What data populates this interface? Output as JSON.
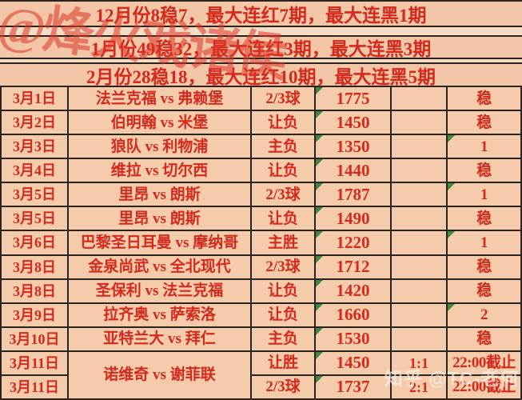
{
  "watermarks": {
    "top_left": "@烽火戏诸侯",
    "bottom_right": "知乎 @TC-老何"
  },
  "summary_rows": [
    "12月份8稳7，最大连红7期，最大连黑1期",
    "1月份49稳32，最大连红3期，最大连黑3期",
    "2月份28稳18，最大连红10期，最大连黑5期"
  ],
  "table": {
    "columns": [
      "date",
      "match",
      "bet",
      "odds",
      "score",
      "result"
    ],
    "rows": [
      {
        "date": "3月1日",
        "match": "法兰克福 vs 弗赖堡",
        "match_span": 1,
        "bet": "2/3球",
        "odds": "1775",
        "odds_flag": true,
        "score": "",
        "result": "稳",
        "result_flag": false
      },
      {
        "date": "3月2日",
        "match": "伯明翰 vs 米堡",
        "match_span": 1,
        "bet": "让负",
        "odds": "1450",
        "odds_flag": true,
        "score": "",
        "result": "稳",
        "result_flag": false
      },
      {
        "date": "3月3日",
        "match": "狼队 vs 利物浦",
        "match_span": 1,
        "bet": "主负",
        "odds": "1350",
        "odds_flag": true,
        "score": "",
        "result": "1",
        "result_flag": true
      },
      {
        "date": "3月4日",
        "match": "维拉 vs 切尔西",
        "match_span": 1,
        "bet": "让负",
        "odds": "1440",
        "odds_flag": true,
        "score": "",
        "result": "稳",
        "result_flag": false
      },
      {
        "date": "3月5日",
        "match": "里昂 vs 朗斯",
        "match_span": 1,
        "bet": "2/3球",
        "odds": "1787",
        "odds_flag": true,
        "score": "",
        "result": "1",
        "result_flag": true
      },
      {
        "date": "3月5日",
        "match": "里昂 vs 朗斯",
        "match_span": 1,
        "bet": "让负",
        "odds": "1490",
        "odds_flag": true,
        "score": "",
        "result": "稳",
        "result_flag": false
      },
      {
        "date": "3月6日",
        "match": "巴黎圣日耳曼 vs 摩纳哥",
        "match_span": 1,
        "bet": "主胜",
        "odds": "1220",
        "odds_flag": true,
        "score": "",
        "result": "1",
        "result_flag": true
      },
      {
        "date": "3月8日",
        "match": "金泉尚武 vs 全北现代",
        "match_span": 1,
        "bet": "2/3球",
        "odds": "1712",
        "odds_flag": true,
        "score": "",
        "result": "稳",
        "result_flag": false
      },
      {
        "date": "3月8日",
        "match": "圣保利 vs 法兰克福",
        "match_span": 1,
        "bet": "让负",
        "odds": "1420",
        "odds_flag": true,
        "score": "",
        "result": "稳",
        "result_flag": false
      },
      {
        "date": "3月9日",
        "match": "拉齐奥 vs 萨索洛",
        "match_span": 1,
        "bet": "让负",
        "odds": "1660",
        "odds_flag": true,
        "score": "",
        "result": "2",
        "result_flag": true
      },
      {
        "date": "3月10日",
        "match": "亚特兰大 vs 拜仁",
        "match_span": 1,
        "bet": "主负",
        "odds": "1530",
        "odds_flag": true,
        "score": "",
        "result": "稳",
        "result_flag": false
      },
      {
        "date": "3月11日",
        "match": "诺维奇 vs 谢菲联",
        "match_span": 2,
        "bet": "让胜",
        "odds": "1450",
        "odds_flag": true,
        "score": "1:1",
        "result": "22:00截止",
        "result_flag": false
      },
      {
        "date": "3月11日",
        "match": null,
        "match_span": 0,
        "bet": "2/3球",
        "odds": "1737",
        "odds_flag": true,
        "score": "2:1",
        "result": "22:00截止",
        "result_flag": false
      }
    ]
  },
  "colors": {
    "background": "#f2c6a7",
    "cell": "#f5cbab",
    "divider_band": "#f6dcc4",
    "border": "#2a2420",
    "text_red": "#d5291b",
    "flag_green": "#3e8a3a",
    "watermark_red": "rgba(222,52,38,0.55)",
    "watermark_white": "rgba(253,249,243,0.62)"
  }
}
